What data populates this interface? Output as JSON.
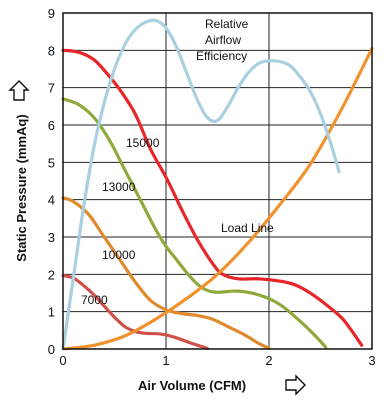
{
  "chart_data": {
    "type": "line",
    "title": "",
    "xlabel": "Air Volume (CFM)",
    "ylabel": "Static Pressure (mmAq)",
    "xlim": [
      0,
      3
    ],
    "ylim": [
      0,
      9
    ],
    "xticks": [
      "0",
      "1",
      "2",
      "3"
    ],
    "yticks": [
      "0",
      "1",
      "2",
      "3",
      "4",
      "5",
      "6",
      "7",
      "8",
      "9"
    ],
    "grid": true,
    "legend": "none",
    "series": [
      {
        "name": "15000",
        "color": "#e8262a",
        "x": [
          0,
          0.15,
          0.3,
          0.42,
          0.55,
          0.7,
          0.85,
          1.0,
          1.15,
          1.3,
          1.45,
          1.55,
          1.7,
          1.9,
          2.1,
          2.25,
          2.4,
          2.55,
          2.7,
          2.8,
          2.9
        ],
        "y": [
          8.0,
          7.95,
          7.75,
          7.4,
          6.95,
          6.3,
          5.35,
          4.6,
          3.75,
          2.95,
          2.3,
          2.0,
          1.88,
          1.88,
          1.82,
          1.72,
          1.5,
          1.2,
          0.85,
          0.5,
          0.1
        ]
      },
      {
        "name": "13000",
        "color": "#8faa3a",
        "x": [
          0,
          0.15,
          0.3,
          0.45,
          0.6,
          0.75,
          0.9,
          1.0,
          1.1,
          1.2,
          1.3,
          1.4,
          1.5,
          1.7,
          1.9,
          2.1,
          2.3,
          2.45,
          2.55
        ],
        "y": [
          6.7,
          6.55,
          6.2,
          5.6,
          4.8,
          4.0,
          3.2,
          2.75,
          2.4,
          2.05,
          1.75,
          1.57,
          1.52,
          1.55,
          1.45,
          1.2,
          0.75,
          0.35,
          0.05
        ]
      },
      {
        "name": "10000",
        "color": "#e08a2c",
        "x": [
          0,
          0.1,
          0.25,
          0.4,
          0.55,
          0.7,
          0.85,
          1.0,
          1.15,
          1.3,
          1.45,
          1.6,
          1.75,
          1.9,
          2.0
        ],
        "y": [
          4.05,
          3.95,
          3.6,
          3.0,
          2.4,
          1.8,
          1.3,
          1.05,
          0.95,
          0.9,
          0.8,
          0.6,
          0.4,
          0.15,
          0.02
        ]
      },
      {
        "name": "7000",
        "color": "#d0504a",
        "x": [
          0,
          0.1,
          0.2,
          0.3,
          0.4,
          0.5,
          0.6,
          0.7,
          0.8,
          0.95,
          1.1,
          1.25,
          1.4
        ],
        "y": [
          1.97,
          1.9,
          1.7,
          1.45,
          1.15,
          0.85,
          0.6,
          0.47,
          0.42,
          0.4,
          0.3,
          0.15,
          0.02
        ]
      },
      {
        "name": "Load Line",
        "color": "#f0922e",
        "x": [
          0,
          0.3,
          0.6,
          0.9,
          1.2,
          1.5,
          1.8,
          2.1,
          2.4,
          2.7,
          3.0
        ],
        "y": [
          0,
          0.1,
          0.35,
          0.8,
          1.35,
          2.0,
          2.85,
          3.85,
          4.95,
          6.4,
          8.05
        ]
      },
      {
        "name": "Relative Airflow Efficiency",
        "color": "#a8d0e0",
        "x": [
          0,
          0.1,
          0.2,
          0.3,
          0.4,
          0.5,
          0.6,
          0.7,
          0.8,
          0.9,
          1.0,
          1.1,
          1.2,
          1.3,
          1.4,
          1.5,
          1.6,
          1.7,
          1.8,
          1.9,
          2.0,
          2.1,
          2.2,
          2.3,
          2.4,
          2.5,
          2.6,
          2.68
        ],
        "y": [
          0,
          1.9,
          3.8,
          5.4,
          6.6,
          7.5,
          8.15,
          8.55,
          8.75,
          8.8,
          8.6,
          8.1,
          7.4,
          6.7,
          6.2,
          6.12,
          6.5,
          7.0,
          7.4,
          7.65,
          7.72,
          7.7,
          7.6,
          7.3,
          6.9,
          6.3,
          5.5,
          4.75
        ]
      }
    ]
  },
  "labels": {
    "rpm_15000": "15000",
    "rpm_13000": "13000",
    "rpm_10000": "10000",
    "rpm_7000": "7000",
    "load_line": "Load Line",
    "efficiency_line1": "Relative",
    "efficiency_line2": "Airflow",
    "efficiency_line3": "Efficiency",
    "x_axis_title": "Air Volume (CFM)",
    "y_axis_title": "Static Pressure (mmAq)"
  }
}
